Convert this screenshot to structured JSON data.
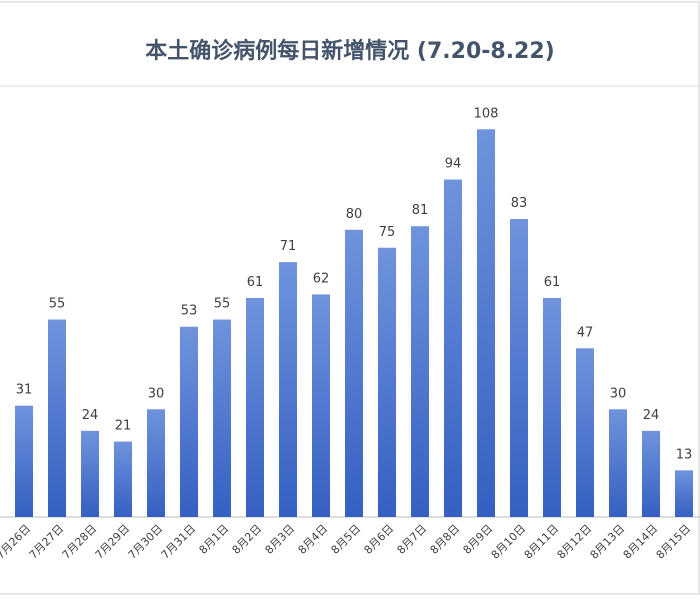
{
  "chart_data": {
    "type": "bar",
    "title": "本土确诊病例每日新增情况 (7.20-8.22)",
    "categories": [
      "7月26日",
      "7月27日",
      "7月28日",
      "7月29日",
      "7月30日",
      "7月31日",
      "8月1日",
      "8月2日",
      "8月3日",
      "8月4日",
      "8月5日",
      "8月6日",
      "8月7日",
      "8月8日",
      "8月9日",
      "8月10日",
      "8月11日",
      "8月12日",
      "8月13日",
      "8月14日",
      "8月15日"
    ],
    "values": [
      31,
      55,
      24,
      21,
      30,
      53,
      55,
      61,
      71,
      62,
      80,
      75,
      81,
      94,
      108,
      83,
      61,
      47,
      30,
      24,
      13
    ],
    "color": "#4a73cf"
  }
}
